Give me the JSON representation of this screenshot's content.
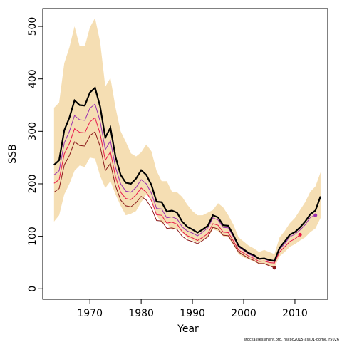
{
  "chart_data": {
    "type": "line",
    "x_label": "Year",
    "y_label": "SSB",
    "footnote": "stockassessment.org, nscod2015-ass01-dome, r5026",
    "x": [
      1963,
      1964,
      1965,
      1966,
      1967,
      1968,
      1969,
      1970,
      1971,
      1972,
      1973,
      1974,
      1975,
      1976,
      1977,
      1978,
      1979,
      1980,
      1981,
      1982,
      1983,
      1984,
      1985,
      1986,
      1987,
      1988,
      1989,
      1990,
      1991,
      1992,
      1993,
      1994,
      1995,
      1996,
      1997,
      1998,
      1999,
      2000,
      2001,
      2002,
      2003,
      2004,
      2005,
      2006,
      2007,
      2008,
      2009,
      2010,
      2011,
      2012,
      2013,
      2014,
      2015
    ],
    "band": {
      "color": "#f5deb3",
      "upper": [
        345,
        355,
        430,
        460,
        500,
        462,
        462,
        498,
        516,
        470,
        385,
        402,
        345,
        300,
        280,
        258,
        252,
        260,
        275,
        262,
        225,
        205,
        205,
        185,
        184,
        175,
        160,
        148,
        140,
        140,
        145,
        150,
        163,
        155,
        140,
        122,
        98,
        90,
        82,
        77,
        70,
        74,
        70,
        66,
        98,
        110,
        125,
        135,
        150,
        165,
        185,
        195,
        222
      ],
      "lower": [
        128,
        140,
        180,
        200,
        225,
        235,
        232,
        250,
        248,
        215,
        192,
        205,
        180,
        158,
        140,
        143,
        148,
        165,
        180,
        170,
        140,
        125,
        125,
        112,
        115,
        107,
        97,
        92,
        88,
        93,
        98,
        113,
        110,
        100,
        98,
        83,
        66,
        60,
        56,
        52,
        47,
        47,
        43,
        40,
        62,
        70,
        80,
        85,
        92,
        98,
        108,
        115,
        135
      ]
    },
    "series": [
      {
        "color": "#8b1a1a",
        "values": [
          184,
          191,
          236,
          254,
          280,
          273,
          272,
          292,
          299,
          271,
          225,
          239,
          196,
          169,
          158,
          156,
          164,
          176,
          169,
          154,
          130,
          129,
          115,
          116,
          113,
          100,
          93,
          90,
          86,
          92,
          99,
          117,
          114,
          102,
          101,
          86,
          70,
          64,
          58,
          54,
          48,
          48,
          44,
          40,
          null,
          null,
          null,
          null,
          null,
          null,
          null,
          null,
          null
        ]
      },
      {
        "color": "#e8174a",
        "values": [
          201,
          208,
          257,
          277,
          305,
          298,
          297,
          318,
          326,
          295,
          245,
          261,
          213,
          184,
          172,
          170,
          179,
          192,
          184,
          168,
          141,
          140,
          125,
          127,
          123,
          109,
          101,
          97,
          92,
          98,
          105,
          124,
          121,
          108,
          107,
          91,
          74,
          68,
          62,
          58,
          52,
          53,
          50,
          49,
          70,
          80,
          90,
          95,
          103,
          null,
          null,
          null,
          null
        ]
      },
      {
        "color": "#9b30b0",
        "values": [
          217,
          225,
          278,
          300,
          330,
          322,
          321,
          344,
          352,
          319,
          265,
          282,
          231,
          200,
          186,
          184,
          193,
          208,
          200,
          182,
          153,
          152,
          135,
          137,
          133,
          118,
          110,
          106,
          101,
          108,
          116,
          135,
          131,
          117,
          116,
          99,
          80,
          73,
          66,
          62,
          56,
          57,
          53,
          52,
          75,
          86,
          99,
          104,
          112,
          122,
          136,
          140,
          null
        ]
      },
      {
        "color": "#000000",
        "width": 2.2,
        "values": [
          236,
          245,
          302,
          326,
          359,
          350,
          349,
          374,
          383,
          347,
          288,
          307,
          251,
          217,
          202,
          200,
          210,
          226,
          217,
          198,
          166,
          165,
          147,
          149,
          145,
          128,
          118,
          113,
          107,
          113,
          120,
          140,
          136,
          121,
          120,
          102,
          82,
          75,
          68,
          64,
          57,
          58,
          55,
          53,
          78,
          90,
          103,
          108,
          117,
          128,
          142,
          149,
          176
        ]
      }
    ],
    "xlim": [
      1960.8,
      2016.4
    ],
    "xticks": [
      1970,
      1980,
      1990,
      2000,
      2010
    ],
    "ylim": [
      -20,
      534
    ],
    "yticks": [
      0,
      100,
      200,
      300,
      400,
      500
    ]
  }
}
